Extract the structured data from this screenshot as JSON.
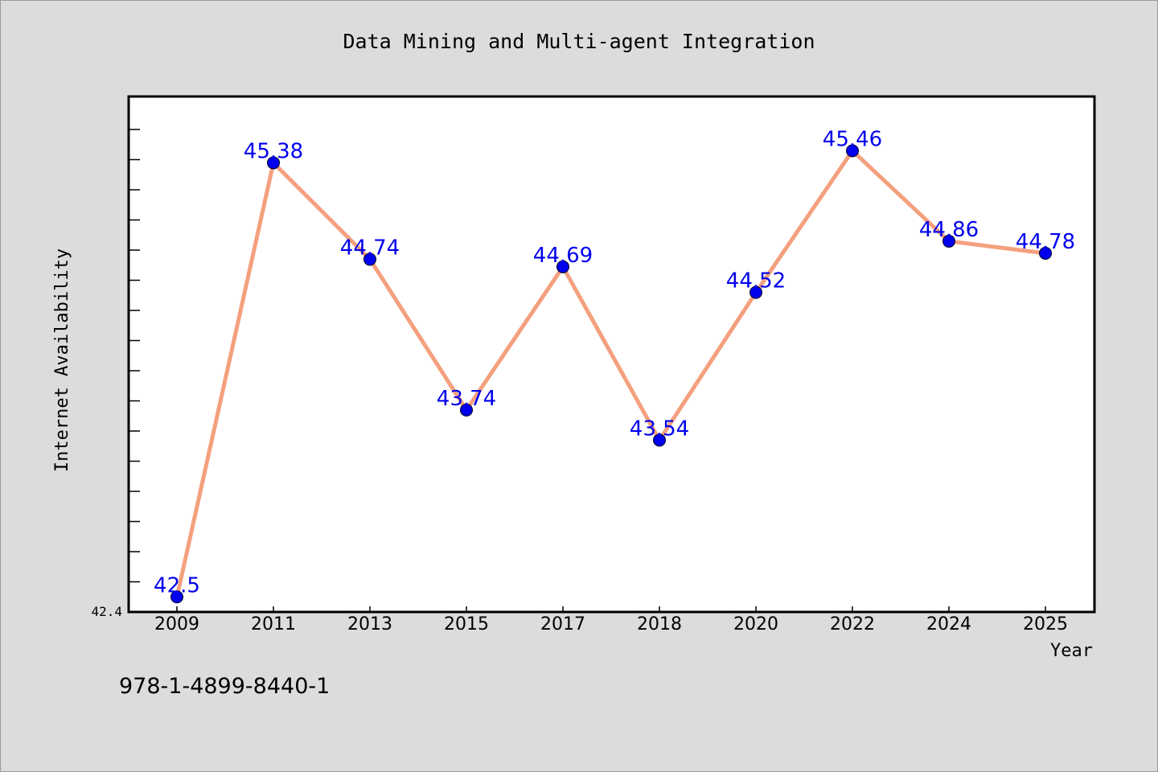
{
  "chart_data": {
    "type": "line",
    "title": "Data Mining and Multi-agent Integration",
    "xlabel": "Year",
    "ylabel": "Internet Availability",
    "categories": [
      "2009",
      "2011",
      "2013",
      "2015",
      "2017",
      "2018",
      "2020",
      "2022",
      "2024",
      "2025"
    ],
    "series": [
      {
        "values": [
          42.5,
          45.38,
          44.74,
          43.74,
          44.69,
          43.54,
          44.52,
          45.46,
          44.86,
          44.78
        ],
        "labels": [
          "42.5",
          "45.38",
          "44.74",
          "43.74",
          "44.69",
          "43.54",
          "44.52",
          "45.46",
          "44.86",
          "44.78"
        ],
        "line_color": "#f4a07e",
        "marker_color": "#0000ee"
      }
    ],
    "ylim": [
      42.4,
      45.82
    ],
    "y_tick_label": "42.4",
    "grid": false,
    "data_label_color": "#0000ee"
  },
  "footer_text": "978-1-4899-8440-1"
}
